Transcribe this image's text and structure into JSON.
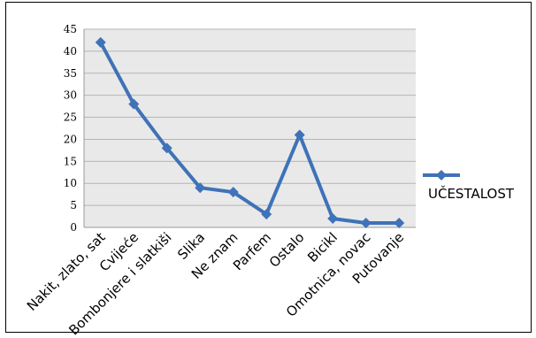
{
  "chart_data": {
    "type": "line",
    "categories": [
      "Nakit, zlato, sat",
      "Cvijeće",
      "Bombonjere i slatkiši",
      "Slika",
      "Ne znam",
      "Parfem",
      "Ostalo",
      "Bicikl",
      "Omotnica, novac",
      "Putovanje"
    ],
    "series": [
      {
        "name": "UČESTALOST",
        "values": [
          42,
          28,
          18,
          9,
          8,
          3,
          21,
          2,
          1,
          1
        ]
      }
    ],
    "yticks": [
      "0",
      "5",
      "10",
      "15",
      "20",
      "25",
      "30",
      "35",
      "40",
      "45"
    ],
    "ylim": [
      0,
      45
    ],
    "grid": true,
    "legend": "right",
    "colors": {
      "line": "#3f72b8",
      "plot_bg": "#e9e9e9",
      "grid": "#b5b5b5"
    }
  }
}
